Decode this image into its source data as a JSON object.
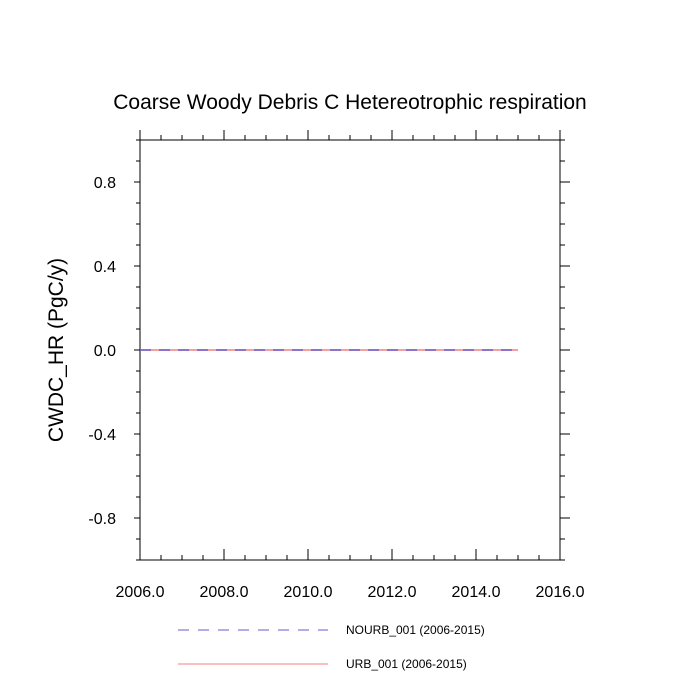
{
  "chart_data": {
    "type": "line",
    "title": "Coarse Woody Debris C Hetereotrophic respiration",
    "ylabel": "CWDC_HR  (PgC/y)",
    "xlabel": "",
    "xlim": [
      2006.0,
      2016.0
    ],
    "ylim": [
      -1.0,
      1.0
    ],
    "x_ticks": [
      "2006.0",
      "2008.0",
      "2010.0",
      "2012.0",
      "2014.0",
      "2016.0"
    ],
    "y_ticks": [
      "0.8",
      "0.4",
      "0.0",
      "-0.4",
      "-0.8"
    ],
    "x": [
      2006,
      2007,
      2008,
      2009,
      2010,
      2011,
      2012,
      2013,
      2014,
      2015
    ],
    "series": [
      {
        "name": "NOURB_001 (2006-2015)",
        "values": [
          0,
          0,
          0,
          0,
          0,
          0,
          0,
          0,
          0,
          0
        ],
        "color": "#6a5acd",
        "style": "dashed"
      },
      {
        "name": "URB_001 (2006-2015)",
        "values": [
          0,
          0,
          0,
          0,
          0,
          0,
          0,
          0,
          0,
          0
        ],
        "color": "#f08080",
        "style": "solid"
      }
    ],
    "legend_position": "bottom",
    "grid": false
  }
}
